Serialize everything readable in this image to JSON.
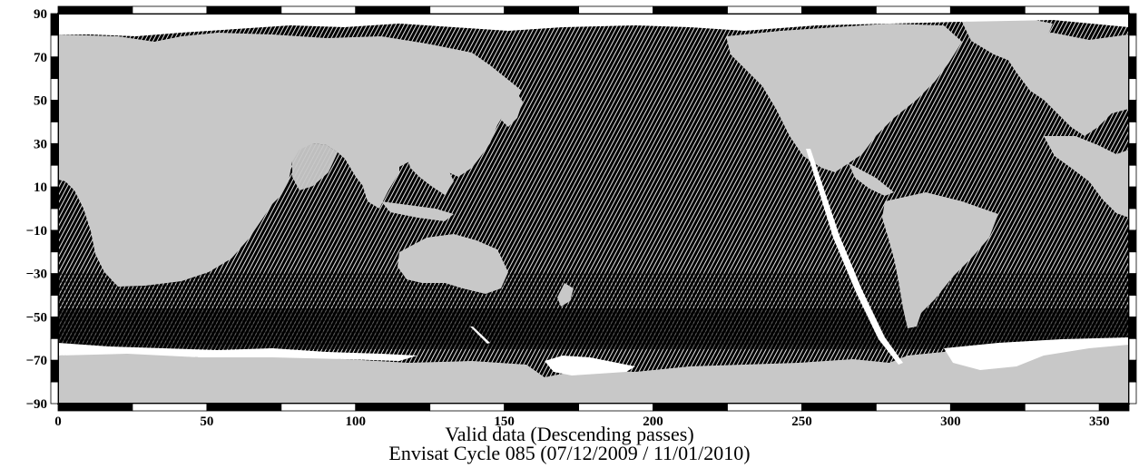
{
  "figure": {
    "title": "Valid data (Descending passes)",
    "subtitle": "Envisat Cycle 085 (07/12/2009 / 11/01/2010)"
  },
  "axes": {
    "x_ticks": [
      "0",
      "50",
      "100",
      "150",
      "200",
      "250",
      "300",
      "350"
    ],
    "y_ticks": [
      "90",
      "70",
      "50",
      "30",
      "10",
      "−10",
      "−30",
      "−50",
      "−70",
      "−90"
    ],
    "x_range": [
      0,
      360
    ],
    "y_range": [
      -90,
      90
    ]
  },
  "colors": {
    "land": "#c8c8c8",
    "valid_data": "#000000",
    "no_data": "#ffffff",
    "frame": "#000000"
  },
  "legend": "none"
}
